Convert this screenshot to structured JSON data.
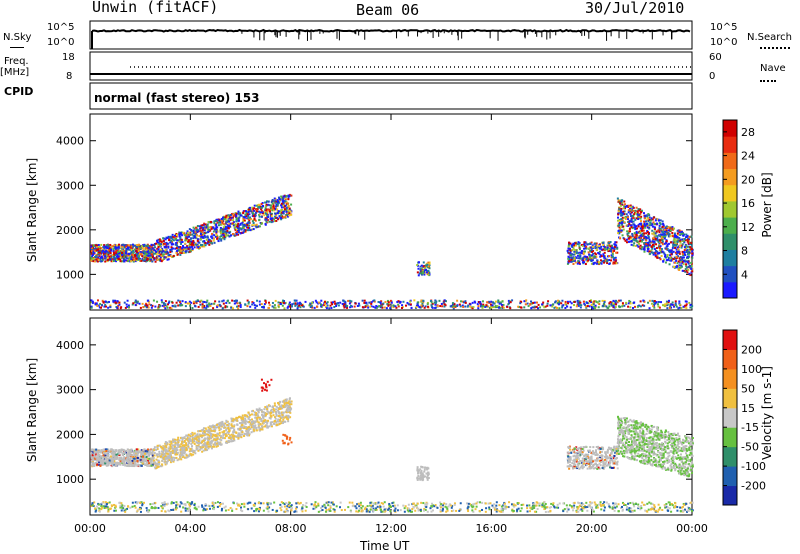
{
  "header": {
    "station": "Unwin (fitACF)",
    "beam": "Beam 06",
    "date": "30/Jul/2010"
  },
  "strips": {
    "nsky_label": "N.Sky",
    "nsky_ticks": [
      "10^5",
      "10^0"
    ],
    "nsearch_label": "N.Search",
    "nsearch_ticks": [
      "10^5",
      "10^0"
    ],
    "freq_label": "Freq.",
    "freq_unit": "[MHz]",
    "freq_ticks": [
      "18",
      "8"
    ],
    "nave_label": "Nave",
    "nave_ticks": [
      "60",
      "0"
    ],
    "cpid_label": "CPID",
    "cpid_text": "normal (fast stereo) 153"
  },
  "chart_data": [
    {
      "type": "heatmap",
      "name": "power-panel",
      "ylabel": "Slant Range [km]",
      "xlabel": "",
      "ylim": [
        200,
        4600
      ],
      "yticks": [
        "4000",
        "3000",
        "2000",
        "1000"
      ],
      "ytick_values": [
        4000,
        3000,
        2000,
        1000
      ],
      "colorbar": {
        "label": "Power [dB]",
        "ticks": [
          "28",
          "24",
          "20",
          "16",
          "12",
          "8",
          "4"
        ],
        "tick_values": [
          28,
          24,
          20,
          16,
          12,
          8,
          4
        ],
        "range": [
          0,
          30
        ],
        "colors": [
          "#1a1aff",
          "#2050c0",
          "#1e7ea0",
          "#2f8f6a",
          "#4cae4c",
          "#a0c830",
          "#f0c820",
          "#f49c20",
          "#f06a18",
          "#e82c10",
          "#d00000"
        ]
      }
    },
    {
      "type": "heatmap",
      "name": "velocity-panel",
      "ylabel": "Slant Range [km]",
      "xlabel": "Time UT",
      "ylim": [
        200,
        4600
      ],
      "xlim": [
        0,
        24
      ],
      "yticks": [
        "4000",
        "3000",
        "2000",
        "1000"
      ],
      "ytick_values": [
        4000,
        3000,
        2000,
        1000
      ],
      "xticks": [
        "00:00",
        "04:00",
        "08:00",
        "12:00",
        "16:00",
        "20:00",
        "00:00"
      ],
      "xtick_values": [
        0,
        4,
        8,
        12,
        16,
        20,
        24
      ],
      "colorbar": {
        "label": "Velocity [m s-1]",
        "ticks": [
          "200",
          "100",
          "50",
          "15",
          "-15",
          "-50",
          "-100",
          "-200"
        ],
        "colors": [
          "#1a2aa8",
          "#2060b0",
          "#2f8f6a",
          "#66c040",
          "#c8c8c8",
          "#f0c040",
          "#f49020",
          "#f06018",
          "#e01010"
        ]
      }
    }
  ],
  "colors": {
    "ground_scatter": "#bdbdbd",
    "accent_red": "#e01010"
  }
}
